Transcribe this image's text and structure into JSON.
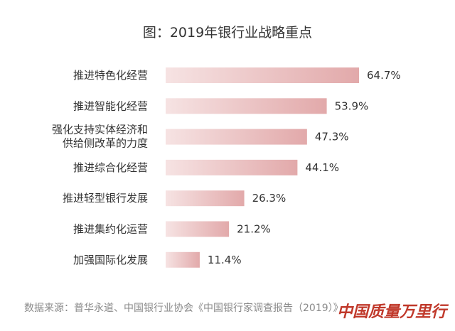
{
  "chart_data": {
    "type": "bar",
    "orientation": "horizontal",
    "title": "图：2019年银行业战略重点",
    "categories": [
      [
        "推进特色化经营"
      ],
      [
        "推进智能化经营"
      ],
      [
        "强化支持实体经济和",
        "供给侧改革的力度"
      ],
      [
        "推进综合化经营"
      ],
      [
        "推进轻型银行发展"
      ],
      [
        "推进集约化运营"
      ],
      [
        "加强国际化发展"
      ]
    ],
    "values": [
      64.7,
      53.9,
      47.3,
      44.1,
      26.3,
      21.2,
      11.4
    ],
    "value_labels": [
      "64.7%",
      "53.9%",
      "47.3%",
      "44.1%",
      "26.3%",
      "21.2%",
      "11.4%"
    ],
    "unit": "%",
    "xlim": [
      0,
      64.7
    ],
    "grid": false,
    "legend": "none",
    "bar_gradient": [
      "#f6e3e3",
      "#e2a9aa"
    ]
  },
  "source": "数据来源：普华永道、中国银行业协会《中国银行家调查报告（2019）》",
  "watermark": "中国质量万里行"
}
